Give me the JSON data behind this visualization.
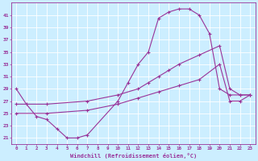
{
  "xlabel": "Windchill (Refroidissement éolien,°C)",
  "bg_color": "#cceeff",
  "line_color": "#993399",
  "grid_color": "#ffffff",
  "xlim": [
    -0.5,
    23.5
  ],
  "ylim": [
    20.0,
    43.0
  ],
  "yticks": [
    21,
    23,
    25,
    27,
    29,
    31,
    33,
    35,
    37,
    39,
    41
  ],
  "xticks": [
    0,
    1,
    2,
    3,
    4,
    5,
    6,
    7,
    8,
    9,
    10,
    11,
    12,
    13,
    14,
    15,
    16,
    17,
    18,
    19,
    20,
    21,
    22,
    23
  ],
  "line1_x": [
    0,
    1,
    2,
    3,
    4,
    5,
    6,
    7,
    10,
    11,
    12,
    13,
    14,
    15,
    16,
    17,
    18,
    19,
    20,
    21,
    22,
    23
  ],
  "line1_y": [
    29,
    26.5,
    24.5,
    24,
    22.5,
    21,
    21,
    21.5,
    27,
    30,
    33,
    35,
    40.5,
    41.5,
    42,
    42,
    41,
    38,
    29,
    28,
    28,
    28
  ],
  "line2_x": [
    0,
    3,
    7,
    10,
    12,
    13,
    14,
    15,
    16,
    18,
    20,
    21,
    22,
    23
  ],
  "line2_y": [
    26.5,
    26.5,
    27,
    28,
    29,
    30,
    31,
    32,
    33,
    34.5,
    36,
    29,
    28,
    28
  ],
  "line3_x": [
    0,
    3,
    7,
    10,
    12,
    14,
    16,
    18,
    20,
    21,
    22,
    23
  ],
  "line3_y": [
    25,
    25,
    25.5,
    26.5,
    27.5,
    28.5,
    29.5,
    30.5,
    33,
    27,
    27,
    28
  ]
}
